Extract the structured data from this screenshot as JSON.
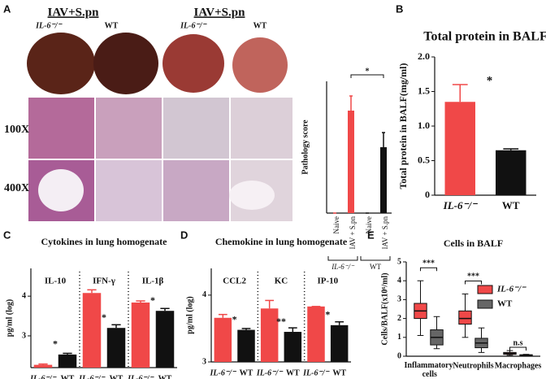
{
  "figure": {
    "panel_labels": [
      "A",
      "B",
      "C",
      "D",
      "E"
    ],
    "photo_group_titles": [
      "IAV+S.pn",
      "IAV+S.pn"
    ],
    "photo_column_labels": [
      "IL-6⁻/⁻",
      "WT",
      "IL-6⁻/⁻",
      "WT"
    ],
    "magnification_labels": [
      "100X",
      "400X"
    ]
  },
  "chart_data": [
    {
      "type": "bar",
      "y_label": "Pathology score",
      "categories": [
        "Naive",
        "IAV + S.pn",
        "Naive",
        "IAV + S.pn"
      ],
      "values": [
        0,
        2.8,
        0,
        1.8
      ],
      "errors": [
        0,
        0.4,
        0,
        0.4
      ],
      "colors": [
        "#f04848",
        "#f04848",
        "#111111",
        "#111111"
      ],
      "group_labels": [
        "IL-6⁻/⁻",
        "WT"
      ],
      "annotations": [
        "*"
      ],
      "ylim": [
        0,
        3.6
      ]
    },
    {
      "type": "bar",
      "title": "Total protein in BALF",
      "y_label": "Total protein in BALF(mg/ml)",
      "categories": [
        "IL-6⁻/⁻",
        "WT"
      ],
      "values": [
        1.35,
        0.65
      ],
      "errors": [
        0.25,
        0.02
      ],
      "colors": [
        "#f04848",
        "#111111"
      ],
      "annotations": [
        "*"
      ],
      "ylim": [
        0,
        2.0
      ],
      "yticks": [
        0,
        0.5,
        {
          "value": 1.0,
          "label": "1.0"
        },
        1.5,
        {
          "value": 2.0,
          "label": "2.0"
        }
      ]
    },
    {
      "type": "bar",
      "title": "Cytokines in lung homogenate",
      "y_label": "pg/ml (log)",
      "groups": [
        "IL-10",
        "IFN-γ",
        "IL-1β"
      ],
      "categories": [
        "IL-6⁻/⁻",
        "WT",
        "IL-6⁻/⁻",
        "WT",
        "IL-6⁻/⁻",
        "WT"
      ],
      "values": [
        2.27,
        2.53,
        4.08,
        3.2,
        3.84,
        3.63
      ],
      "errors": [
        0.02,
        0.03,
        0.08,
        0.08,
        0.04,
        0.06
      ],
      "colors": [
        "#f04848",
        "#111111",
        "#f04848",
        "#111111",
        "#f04848",
        "#111111"
      ],
      "annotations": [
        "*",
        "*",
        "*"
      ],
      "ylim": [
        2.2,
        4.7
      ],
      "yticks": [
        3,
        4
      ]
    },
    {
      "type": "bar",
      "title": "Chemokine in lung homogenate",
      "y_label": "pg/ml (log)",
      "groups": [
        "CCL2",
        "KC",
        "IP-10"
      ],
      "categories": [
        "IL-6⁻/⁻",
        "WT",
        "IL-6⁻/⁻",
        "WT",
        "IL-6⁻/⁻",
        "WT"
      ],
      "values": [
        3.66,
        3.48,
        3.8,
        3.45,
        3.83,
        3.55
      ],
      "errors": [
        0.05,
        0.02,
        0.12,
        0.06,
        0.0,
        0.05
      ],
      "colors": [
        "#f04848",
        "#111111",
        "#f04848",
        "#111111",
        "#f04848",
        "#111111"
      ],
      "annotations": [
        "*",
        "**",
        "*"
      ],
      "ylim": [
        3,
        4.4
      ],
      "yticks": [
        3,
        4
      ]
    },
    {
      "type": "box",
      "title": "Cells in BALF",
      "y_label": "Cells/BALF(x10⁶/ml)",
      "categories": [
        "Inflammatory cells",
        "Neutrophils",
        "Macrophages"
      ],
      "series": [
        {
          "name": "IL-6⁻/⁻",
          "color": "#f04848",
          "min": [
            1.1,
            1.0,
            0.05
          ],
          "q1": [
            2.0,
            1.7,
            0.1
          ],
          "median": [
            2.4,
            2.0,
            0.15
          ],
          "q3": [
            2.8,
            2.4,
            0.2
          ],
          "max": [
            4.0,
            3.3,
            0.3
          ]
        },
        {
          "name": "WT",
          "color": "#666666",
          "min": [
            0.4,
            0.2,
            0.0
          ],
          "q1": [
            0.6,
            0.45,
            0.02
          ],
          "median": [
            1.0,
            0.7,
            0.05
          ],
          "q3": [
            1.4,
            0.95,
            0.08
          ],
          "max": [
            2.1,
            1.5,
            0.1
          ]
        }
      ],
      "annotations": [
        "***",
        "***",
        "n.s"
      ],
      "ylim": [
        0,
        5
      ],
      "yticks": [
        0,
        1,
        2,
        3,
        4,
        5
      ]
    }
  ]
}
